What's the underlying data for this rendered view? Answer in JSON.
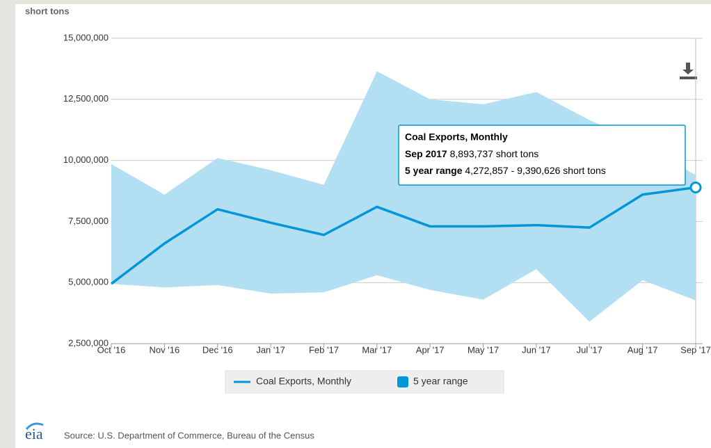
{
  "chart_data": {
    "type": "line-range",
    "y_axis_label": "short tons",
    "categories": [
      "Oct '16",
      "Nov '16",
      "Dec '16",
      "Jan '17",
      "Feb '17",
      "Mar '17",
      "Apr '17",
      "May '17",
      "Jun '17",
      "Jul '17",
      "Aug '17",
      "Sep '17"
    ],
    "series": [
      {
        "name": "Coal Exports, Monthly",
        "color": "#0096d7",
        "values": [
          4950000,
          6600000,
          8000000,
          7450000,
          6950000,
          8100000,
          7300000,
          7300000,
          7350000,
          7250000,
          8600000,
          8893737
        ]
      },
      {
        "name": "5 year range",
        "color": "#b3dff2",
        "high": [
          9850000,
          8600000,
          10100000,
          9600000,
          9000000,
          13650000,
          12500000,
          12300000,
          12800000,
          11650000,
          10700000,
          9390626
        ],
        "low": [
          4950000,
          4800000,
          4900000,
          4550000,
          4600000,
          5300000,
          4700000,
          4300000,
          5550000,
          3400000,
          5100000,
          4272857
        ]
      }
    ],
    "ylim": [
      2500000,
      15000000
    ],
    "yticks": [
      {
        "value": 2500000,
        "label": "2,500,000"
      },
      {
        "value": 5000000,
        "label": "5,000,000"
      },
      {
        "value": 7500000,
        "label": "7,500,000"
      },
      {
        "value": 10000000,
        "label": "10,000,000"
      },
      {
        "value": 12500000,
        "label": "12,500,000"
      },
      {
        "value": 15000000,
        "label": "15,000,000"
      }
    ],
    "grid": true,
    "legend": "bottom",
    "tooltip": {
      "title": "Coal Exports, Monthly",
      "date": "Sep 2017",
      "value": "8,893,737 short tons",
      "range_label": "5 year range",
      "range": "4,272,857 - 9,390,626 short tons"
    },
    "source": "Source: U.S. Department of Commerce, Bureau of the Census",
    "logo": "eia"
  }
}
